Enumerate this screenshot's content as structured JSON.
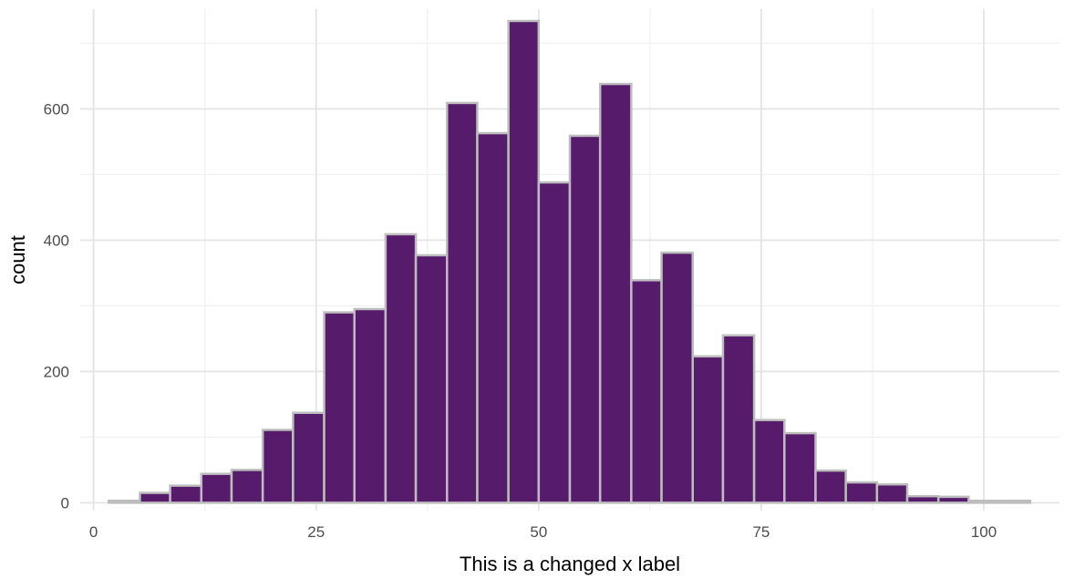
{
  "chart_data": {
    "type": "bar",
    "title": "",
    "xlabel": "This is a changed x label",
    "ylabel": "count",
    "xlim": [
      -1.5,
      108.5
    ],
    "ylim": [
      -12,
      752
    ],
    "x_major_ticks": [
      0,
      25,
      50,
      75,
      100
    ],
    "x_minor_ticks": [
      12.5,
      37.5,
      62.5,
      87.5
    ],
    "y_major_ticks": [
      0,
      200,
      400,
      600
    ],
    "y_minor_ticks": [
      100,
      300,
      500,
      700
    ],
    "x_tick_labels": [
      "0",
      "25",
      "50",
      "75",
      "100"
    ],
    "y_tick_labels": [
      "0",
      "200",
      "400",
      "600"
    ],
    "grid": true,
    "bar_fill": "#561b6b",
    "bar_outline": "#bdbdbd",
    "bins": [
      {
        "start": 1.7,
        "end": 5.2,
        "count": 3
      },
      {
        "start": 5.2,
        "end": 8.6,
        "count": 15
      },
      {
        "start": 8.6,
        "end": 12.1,
        "count": 26
      },
      {
        "start": 12.1,
        "end": 15.5,
        "count": 44
      },
      {
        "start": 15.5,
        "end": 19.0,
        "count": 50
      },
      {
        "start": 19.0,
        "end": 22.4,
        "count": 111
      },
      {
        "start": 22.4,
        "end": 25.9,
        "count": 137
      },
      {
        "start": 25.9,
        "end": 29.3,
        "count": 290
      },
      {
        "start": 29.3,
        "end": 32.8,
        "count": 295
      },
      {
        "start": 32.8,
        "end": 36.2,
        "count": 409
      },
      {
        "start": 36.2,
        "end": 39.7,
        "count": 377
      },
      {
        "start": 39.7,
        "end": 43.1,
        "count": 609
      },
      {
        "start": 43.1,
        "end": 46.6,
        "count": 563
      },
      {
        "start": 46.6,
        "end": 50.0,
        "count": 734
      },
      {
        "start": 50.0,
        "end": 53.5,
        "count": 488
      },
      {
        "start": 53.5,
        "end": 56.9,
        "count": 559
      },
      {
        "start": 56.9,
        "end": 60.4,
        "count": 638
      },
      {
        "start": 60.4,
        "end": 63.8,
        "count": 339
      },
      {
        "start": 63.8,
        "end": 67.3,
        "count": 381
      },
      {
        "start": 67.3,
        "end": 70.7,
        "count": 223
      },
      {
        "start": 70.7,
        "end": 74.2,
        "count": 255
      },
      {
        "start": 74.2,
        "end": 77.6,
        "count": 126
      },
      {
        "start": 77.6,
        "end": 81.1,
        "count": 106
      },
      {
        "start": 81.1,
        "end": 84.5,
        "count": 49
      },
      {
        "start": 84.5,
        "end": 88.0,
        "count": 31
      },
      {
        "start": 88.0,
        "end": 91.4,
        "count": 28
      },
      {
        "start": 91.4,
        "end": 94.9,
        "count": 10
      },
      {
        "start": 94.9,
        "end": 98.3,
        "count": 9
      },
      {
        "start": 98.3,
        "end": 101.8,
        "count": 3
      },
      {
        "start": 101.8,
        "end": 105.2,
        "count": 3
      }
    ]
  }
}
